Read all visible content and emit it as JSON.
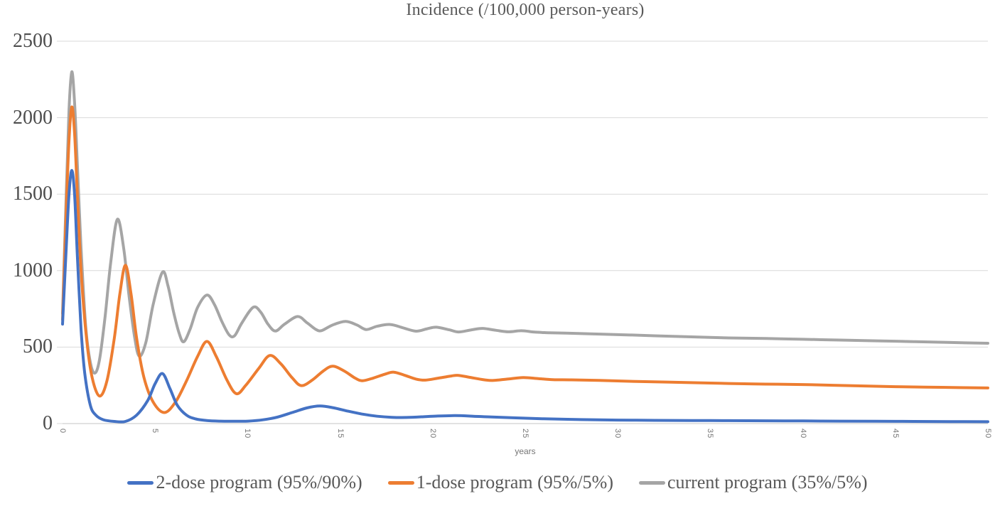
{
  "title": "Incidence (/100,000 person-years)",
  "x_axis": {
    "label": "years",
    "ticks": [
      0,
      5,
      10,
      15,
      20,
      25,
      30,
      35,
      40,
      45,
      50
    ],
    "min": 0,
    "max": 50
  },
  "y_axis": {
    "ticks": [
      0,
      500,
      1000,
      1500,
      2000,
      2500
    ],
    "min": 0,
    "max": 2500,
    "step": 500
  },
  "colors": {
    "gridline": "#d9d9d9",
    "axis_line": "#c6c6c6",
    "title_text": "#595959",
    "y_tick_text": "#4d4d4d",
    "x_tick_text": "#757575",
    "legend_text": "#595959",
    "series_blue": "#4472C4",
    "series_orange": "#ED7D31",
    "series_gray": "#A5A5A5"
  },
  "chart_data": {
    "type": "line",
    "title": "Incidence (/100,000 person-years)",
    "xlabel": "years",
    "ylabel": "",
    "xlim": [
      0,
      50
    ],
    "ylim": [
      0,
      2500
    ],
    "grid": true,
    "legend_position": "bottom",
    "series": [
      {
        "name": "2-dose program (95%/90%)",
        "color": "#4472C4",
        "points": [
          [
            0,
            650
          ],
          [
            0.2,
            1150
          ],
          [
            0.35,
            1500
          ],
          [
            0.5,
            1655
          ],
          [
            0.65,
            1500
          ],
          [
            0.8,
            1100
          ],
          [
            1,
            620
          ],
          [
            1.2,
            330
          ],
          [
            1.5,
            120
          ],
          [
            1.8,
            55
          ],
          [
            2.2,
            25
          ],
          [
            2.8,
            14
          ],
          [
            3.4,
            14
          ],
          [
            4,
            55
          ],
          [
            4.6,
            150
          ],
          [
            5,
            260
          ],
          [
            5.4,
            327
          ],
          [
            5.8,
            230
          ],
          [
            6.2,
            120
          ],
          [
            6.7,
            55
          ],
          [
            7.2,
            30
          ],
          [
            7.8,
            20
          ],
          [
            8.5,
            16
          ],
          [
            9.2,
            15
          ],
          [
            10,
            16
          ],
          [
            10.8,
            24
          ],
          [
            11.6,
            42
          ],
          [
            12.4,
            72
          ],
          [
            13.2,
            102
          ],
          [
            13.9,
            115
          ],
          [
            14.6,
            104
          ],
          [
            15.4,
            82
          ],
          [
            16.2,
            62
          ],
          [
            17,
            48
          ],
          [
            17.8,
            41
          ],
          [
            18.6,
            40
          ],
          [
            19.4,
            44
          ],
          [
            20.2,
            49
          ],
          [
            21.2,
            52
          ],
          [
            22.2,
            48
          ],
          [
            23.2,
            43
          ],
          [
            24.5,
            37
          ],
          [
            26,
            31
          ],
          [
            28,
            26
          ],
          [
            30,
            23
          ],
          [
            32,
            21
          ],
          [
            34,
            20
          ],
          [
            36,
            19
          ],
          [
            38,
            18
          ],
          [
            40,
            17
          ],
          [
            42,
            16
          ],
          [
            44,
            15
          ],
          [
            46,
            14
          ],
          [
            48,
            13
          ],
          [
            50,
            12
          ]
        ]
      },
      {
        "name": "1-dose program (95%/5%)",
        "color": "#ED7D31",
        "points": [
          [
            0,
            680
          ],
          [
            0.2,
            1400
          ],
          [
            0.35,
            1850
          ],
          [
            0.5,
            2070
          ],
          [
            0.65,
            1900
          ],
          [
            0.8,
            1500
          ],
          [
            1,
            1000
          ],
          [
            1.3,
            550
          ],
          [
            1.6,
            300
          ],
          [
            2,
            180
          ],
          [
            2.4,
            280
          ],
          [
            2.8,
            560
          ],
          [
            3.1,
            850
          ],
          [
            3.4,
            1035
          ],
          [
            3.7,
            850
          ],
          [
            4,
            560
          ],
          [
            4.4,
            300
          ],
          [
            4.9,
            140
          ],
          [
            5.5,
            72
          ],
          [
            6.1,
            140
          ],
          [
            6.7,
            280
          ],
          [
            7.3,
            440
          ],
          [
            7.8,
            537
          ],
          [
            8.3,
            440
          ],
          [
            8.9,
            280
          ],
          [
            9.4,
            195
          ],
          [
            9.9,
            250
          ],
          [
            10.6,
            360
          ],
          [
            11.2,
            445
          ],
          [
            11.8,
            390
          ],
          [
            12.4,
            300
          ],
          [
            12.9,
            248
          ],
          [
            13.5,
            285
          ],
          [
            14.1,
            345
          ],
          [
            14.6,
            375
          ],
          [
            15.2,
            345
          ],
          [
            15.8,
            298
          ],
          [
            16.2,
            280
          ],
          [
            16.8,
            298
          ],
          [
            17.4,
            322
          ],
          [
            17.9,
            336
          ],
          [
            18.5,
            315
          ],
          [
            19.1,
            291
          ],
          [
            19.6,
            284
          ],
          [
            20.3,
            297
          ],
          [
            21,
            311
          ],
          [
            21.4,
            315
          ],
          [
            22.1,
            300
          ],
          [
            22.8,
            286
          ],
          [
            23.3,
            282
          ],
          [
            24.1,
            292
          ],
          [
            24.9,
            301
          ],
          [
            25.7,
            294
          ],
          [
            26.5,
            287
          ],
          [
            27.5,
            286
          ],
          [
            29,
            282
          ],
          [
            31,
            275
          ],
          [
            33.5,
            269
          ],
          [
            36,
            262
          ],
          [
            38,
            258
          ],
          [
            40,
            255
          ],
          [
            42.5,
            248
          ],
          [
            45,
            241
          ],
          [
            47.5,
            237
          ],
          [
            50,
            233
          ]
        ]
      },
      {
        "name": "current program (35%/5%)",
        "color": "#A5A5A5",
        "points": [
          [
            0,
            720
          ],
          [
            0.2,
            1500
          ],
          [
            0.35,
            2050
          ],
          [
            0.5,
            2300
          ],
          [
            0.65,
            2100
          ],
          [
            0.8,
            1700
          ],
          [
            1,
            1150
          ],
          [
            1.25,
            640
          ],
          [
            1.5,
            400
          ],
          [
            1.75,
            330
          ],
          [
            2,
            420
          ],
          [
            2.3,
            700
          ],
          [
            2.6,
            1050
          ],
          [
            2.96,
            1335
          ],
          [
            3.3,
            1150
          ],
          [
            3.6,
            830
          ],
          [
            3.9,
            560
          ],
          [
            4.15,
            440
          ],
          [
            4.5,
            530
          ],
          [
            4.9,
            780
          ],
          [
            5.4,
            990
          ],
          [
            5.7,
            900
          ],
          [
            6,
            730
          ],
          [
            6.3,
            590
          ],
          [
            6.55,
            535
          ],
          [
            6.9,
            620
          ],
          [
            7.3,
            760
          ],
          [
            7.8,
            840
          ],
          [
            8.2,
            780
          ],
          [
            8.6,
            670
          ],
          [
            9,
            580
          ],
          [
            9.3,
            575
          ],
          [
            9.7,
            660
          ],
          [
            10.3,
            760
          ],
          [
            10.7,
            730
          ],
          [
            11.1,
            650
          ],
          [
            11.5,
            605
          ],
          [
            12,
            650
          ],
          [
            12.7,
            700
          ],
          [
            13.2,
            660
          ],
          [
            13.7,
            615
          ],
          [
            14,
            608
          ],
          [
            14.6,
            645
          ],
          [
            15.3,
            668
          ],
          [
            15.9,
            645
          ],
          [
            16.4,
            615
          ],
          [
            17,
            636
          ],
          [
            17.7,
            648
          ],
          [
            18.4,
            626
          ],
          [
            19.1,
            604
          ],
          [
            19.7,
            620
          ],
          [
            20.2,
            630
          ],
          [
            20.9,
            613
          ],
          [
            21.4,
            599
          ],
          [
            22.1,
            613
          ],
          [
            22.7,
            622
          ],
          [
            23.4,
            610
          ],
          [
            24.1,
            600
          ],
          [
            24.8,
            607
          ],
          [
            25.5,
            598
          ],
          [
            26.3,
            594
          ],
          [
            27.2,
            591
          ],
          [
            28.2,
            588
          ],
          [
            29.2,
            584
          ],
          [
            30.5,
            580
          ],
          [
            32,
            574
          ],
          [
            34,
            567
          ],
          [
            36,
            560
          ],
          [
            38,
            556
          ],
          [
            40,
            551
          ],
          [
            42,
            546
          ],
          [
            44,
            541
          ],
          [
            46,
            536
          ],
          [
            48,
            530
          ],
          [
            50,
            525
          ]
        ]
      }
    ]
  }
}
